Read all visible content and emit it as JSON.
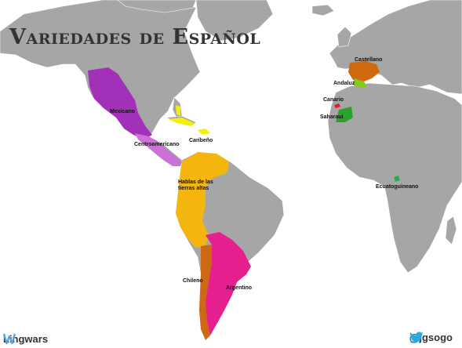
{
  "title": "Variedades de Español",
  "colors": {
    "ocean": "#ffffff",
    "land": "#a6a6a6",
    "border": "#ffffff",
    "mexicano": "#a230b8",
    "centroamericano": "#cc72d6",
    "caribeno": "#f5f000",
    "hablas": "#f5b50f",
    "chileno": "#cf6815",
    "argentino": "#e61f8f",
    "castellano": "#d0690f",
    "andaluz": "#86c820",
    "canario": "#e6192a",
    "saharaui": "#29a329",
    "ecuatoguineano": "#2fa84f",
    "twitter": "#2aa9e0",
    "brand": "#5aa2d8"
  },
  "regions": {
    "mexicano": "Mexicano",
    "centroamericano": "Centroamericano",
    "caribeno": "Caribeño",
    "hablas": "Hablas de las tierras altas",
    "chileno": "Chileno",
    "argentino": "Argentino",
    "castellano": "Castellano",
    "andaluz": "Andaluz",
    "canario": "Canario",
    "saharaui": "Saharaui",
    "ecuatoguineano": "Ecuatoguineano"
  },
  "branding": {
    "logo_icon": "lingwars-logo-icon",
    "name": "Lingwars"
  },
  "social": {
    "icon": "twitter-bird-icon",
    "handle": "@jgsogo"
  }
}
